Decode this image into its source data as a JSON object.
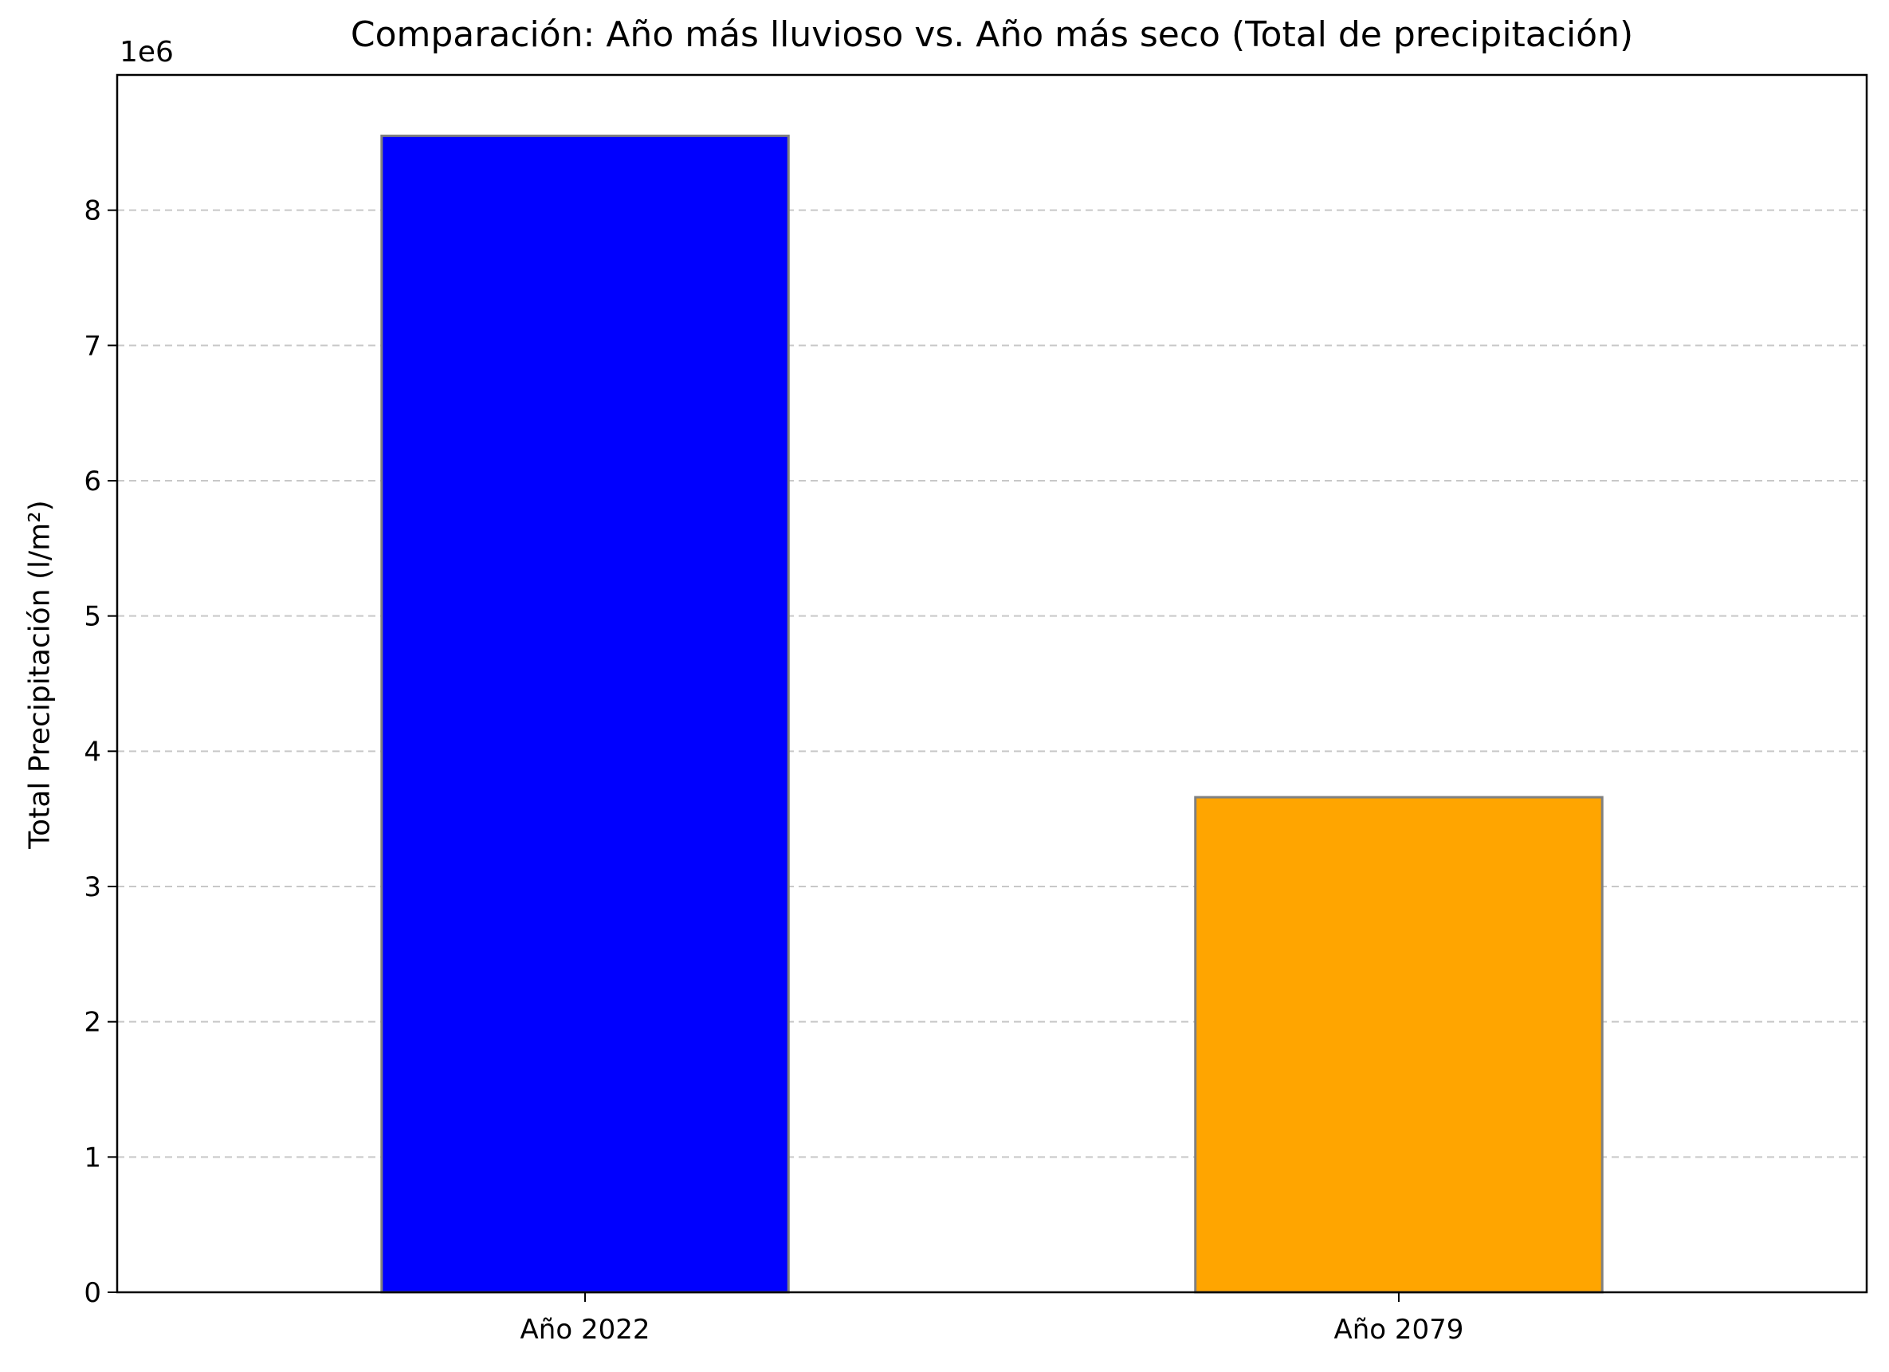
{
  "chart_data": {
    "type": "bar",
    "title": "Comparación: Año más lluvioso vs. Año más seco (Total de precipitación)",
    "xlabel": "",
    "ylabel": "Total Precipitación (l/m²)",
    "y_offset_label": "1e6",
    "categories": [
      "Año 2022",
      "Año 2079"
    ],
    "values": [
      8550000,
      3660000
    ],
    "colors": [
      "#0000ff",
      "#ffa500"
    ],
    "edge_color": "#808080",
    "ylim": [
      0,
      9000000
    ],
    "yticks": [
      0,
      1000000,
      2000000,
      3000000,
      4000000,
      5000000,
      6000000,
      7000000,
      8000000
    ],
    "ytick_labels": [
      "0",
      "1",
      "2",
      "3",
      "4",
      "5",
      "6",
      "7",
      "8"
    ],
    "grid": "y-dashed",
    "legend": "none"
  }
}
